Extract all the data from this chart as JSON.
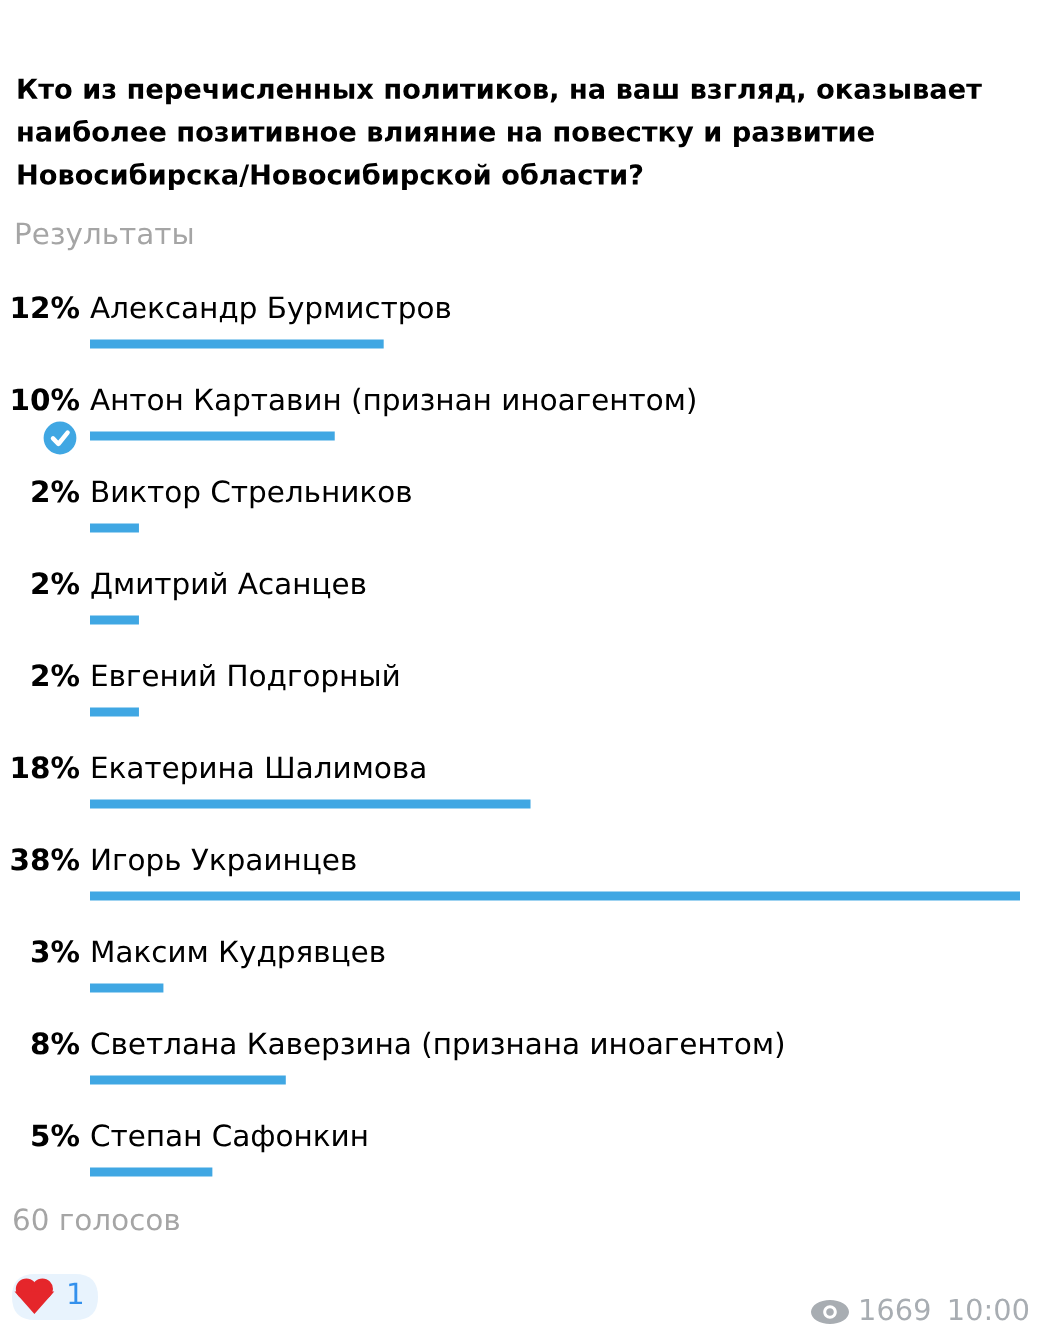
{
  "chart_data": {
    "type": "bar",
    "orientation": "horizontal",
    "title": "Кто из перечисленных политиков, на ваш взгляд, оказывает\nнаиболее позитивное влияние на повестку и развитие\nНовосибирска/Новосибирской области?",
    "subtitle": "Результаты",
    "categories": [
      "Александр Бурмистров",
      "Антон Картавин (признан иноагентом)",
      "Виктор Стрельников",
      "Дмитрий Асанцев",
      "Евгений Подгорный",
      "Екатерина Шалимова",
      "Игорь Украинцев",
      "Максим Кудрявцев",
      "Светлана Каверзина (признана иноагентом)",
      "Степан Сафонкин"
    ],
    "values": [
      12,
      10,
      2,
      2,
      2,
      18,
      38,
      3,
      8,
      5
    ],
    "value_labels": [
      "12%",
      "10%",
      "2%",
      "2%",
      "2%",
      "18%",
      "38%",
      "3%",
      "8%",
      "5%"
    ],
    "color": "#40a7e3",
    "tick_labels": "y",
    "annotations": [
      "60 голосов",
      "1",
      "1669",
      "10:00"
    ]
  }
}
